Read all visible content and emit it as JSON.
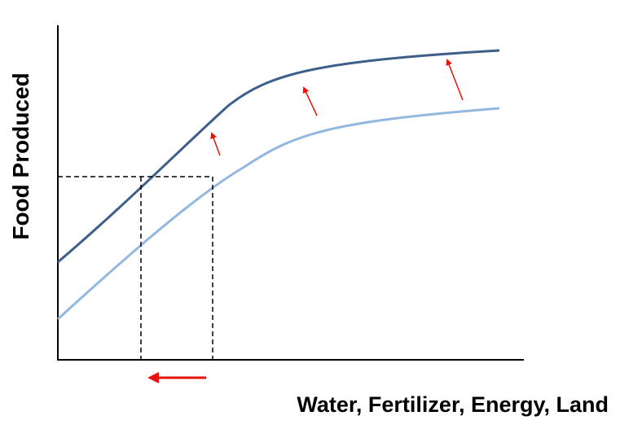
{
  "figure": {
    "ylabel": "Food Produced",
    "xlabel": "Water, Fertilizer, Energy, Land"
  },
  "colors": {
    "axis": "#000000",
    "upper_curve": "#3d5f8a",
    "lower_curve": "#93b8e0",
    "guide_lines": "#000000",
    "arrows": "#e8120c"
  }
}
